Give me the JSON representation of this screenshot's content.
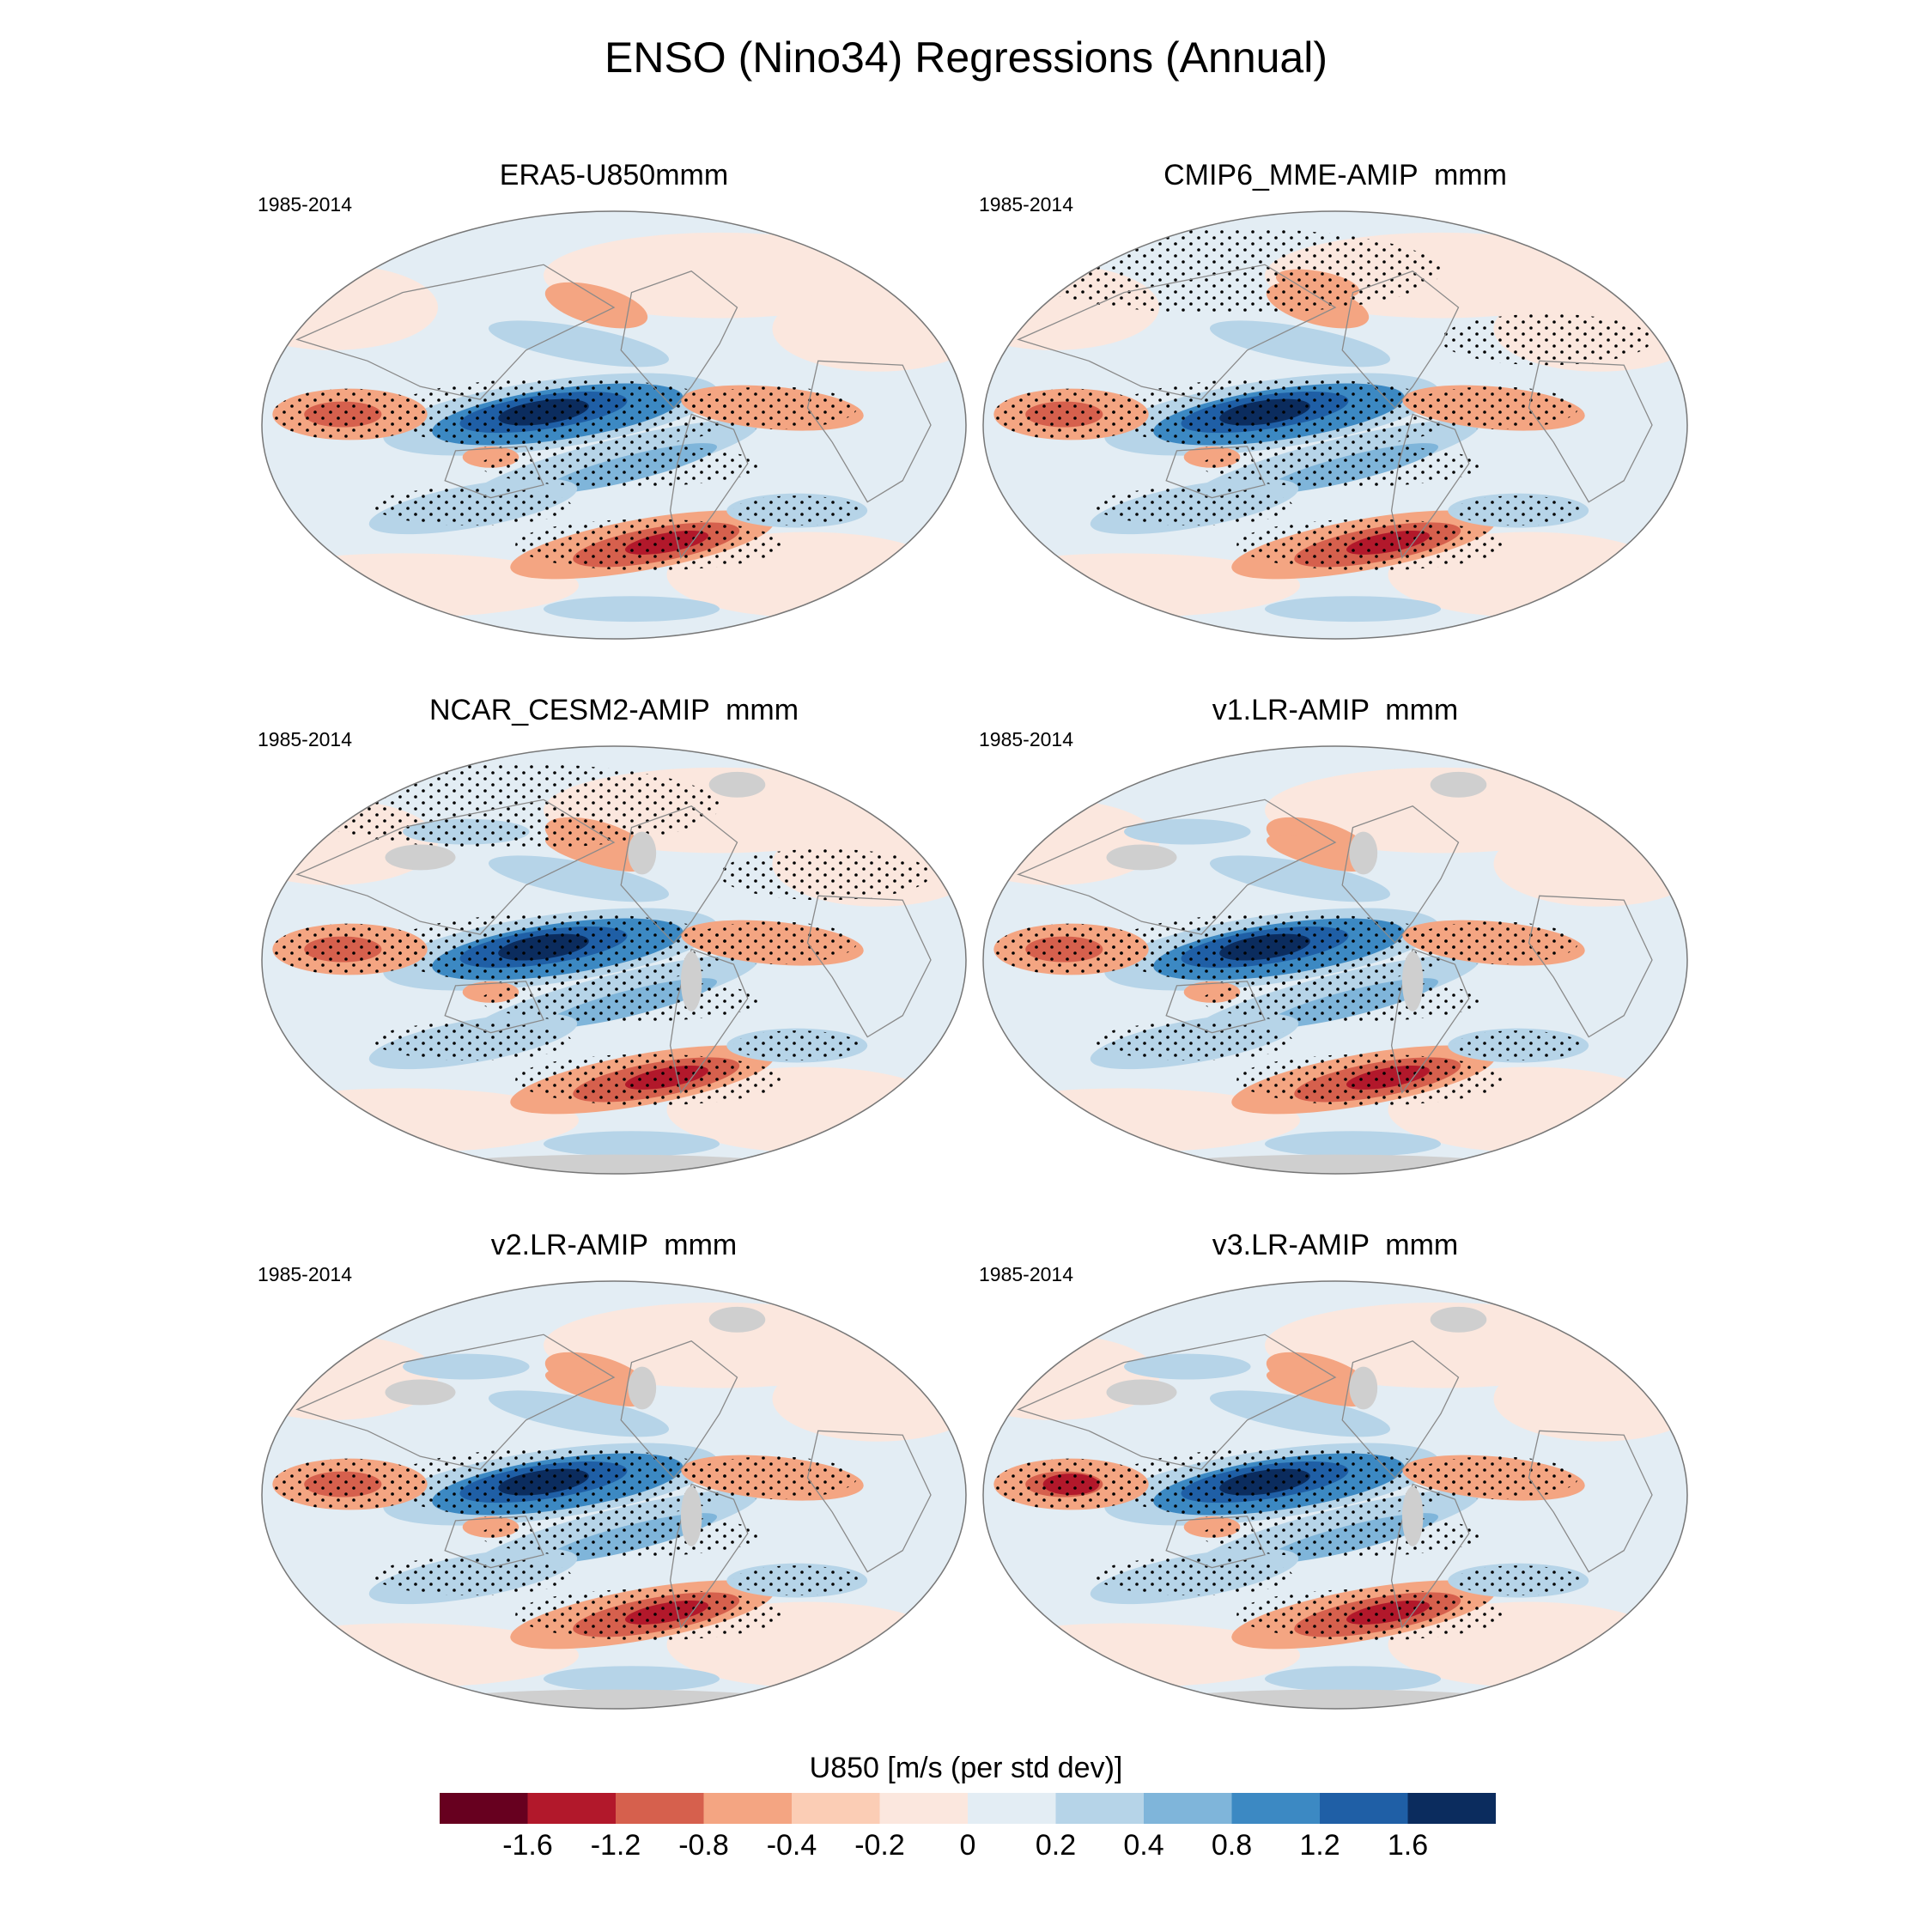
{
  "chart_data": {
    "type": "heatmap",
    "title": "ENSO (Nino34) Regressions (Annual)",
    "variable": "U850",
    "units": "m/s (per std dev)",
    "colorbar_label": "U850 [m/s (per std dev)]",
    "colorbar_ticks": [
      "-1.6",
      "-1.2",
      "-0.8",
      "-0.4",
      "-0.2",
      "0",
      "0.2",
      "0.4",
      "0.8",
      "1.2",
      "1.6"
    ],
    "colorbar_colors": [
      "#67001f",
      "#b2182b",
      "#d6604d",
      "#f4a582",
      "#fbcdb5",
      "#fbe7de",
      "#e3edf4",
      "#b6d4e8",
      "#7fb5da",
      "#3c89c3",
      "#1f5fa6",
      "#0b2c5e"
    ],
    "hatching": "stippling marks statistically significant regressions",
    "panels": [
      {
        "title": "ERA5-U850mmm",
        "period": "1985-2014",
        "masked_land": false
      },
      {
        "title": "CMIP6_MME-AMIP  mmm",
        "period": "1985-2014",
        "masked_land": false
      },
      {
        "title": "NCAR_CESM2-AMIP  mmm",
        "period": "1985-2014",
        "masked_land": true
      },
      {
        "title": "v1.LR-AMIP  mmm",
        "period": "1985-2014",
        "masked_land": true
      },
      {
        "title": "v2.LR-AMIP  mmm",
        "period": "1985-2014",
        "masked_land": true
      },
      {
        "title": "v3.LR-AMIP  mmm",
        "period": "1985-2014",
        "masked_land": true
      }
    ]
  }
}
